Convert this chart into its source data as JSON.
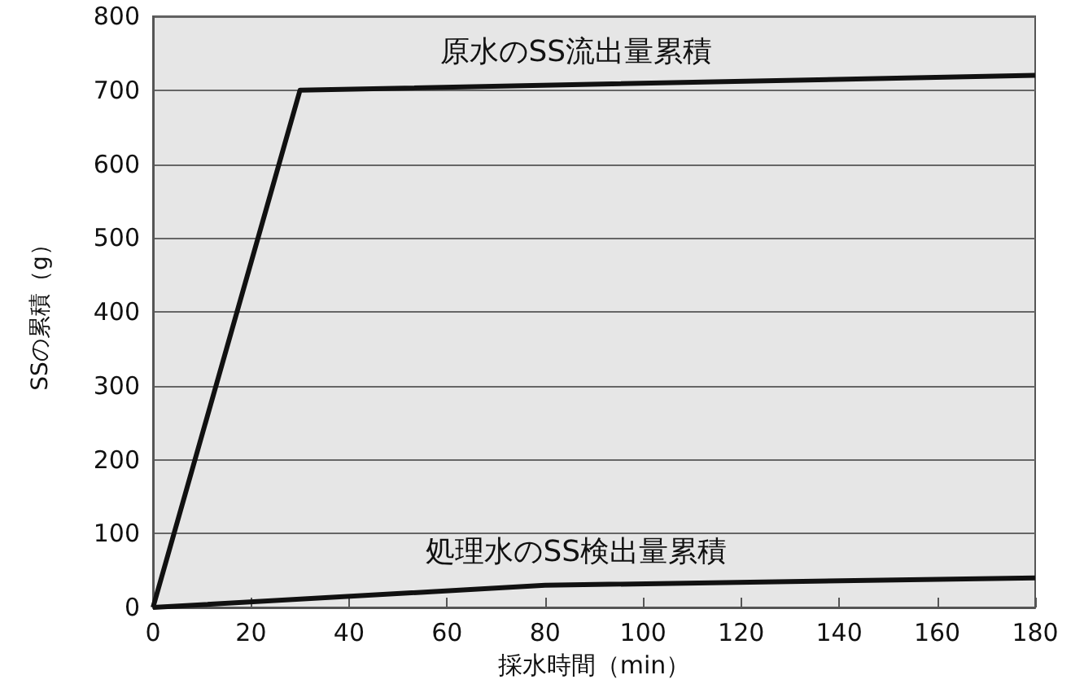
{
  "chart_data": {
    "type": "line",
    "xlabel": "採水時間（min）",
    "ylabel": "SSの累積（g）",
    "xlim": [
      0,
      180
    ],
    "xticks": [
      0,
      20,
      40,
      60,
      80,
      100,
      120,
      140,
      160,
      180
    ],
    "ylim": [
      0,
      800
    ],
    "yticks": [
      0,
      100,
      200,
      300,
      400,
      500,
      600,
      700,
      800
    ],
    "grid": "y",
    "legend": false,
    "marker": "none",
    "line_style": "solid",
    "series": [
      {
        "name": "原水のSS流出量累積",
        "color": "#111111",
        "x": [
          0,
          30,
          180
        ],
        "values": [
          0,
          700,
          720
        ]
      },
      {
        "name": "処理水のSS検出量累積",
        "color": "#111111",
        "x": [
          0,
          80,
          180
        ],
        "values": [
          0,
          30,
          40
        ]
      }
    ]
  }
}
